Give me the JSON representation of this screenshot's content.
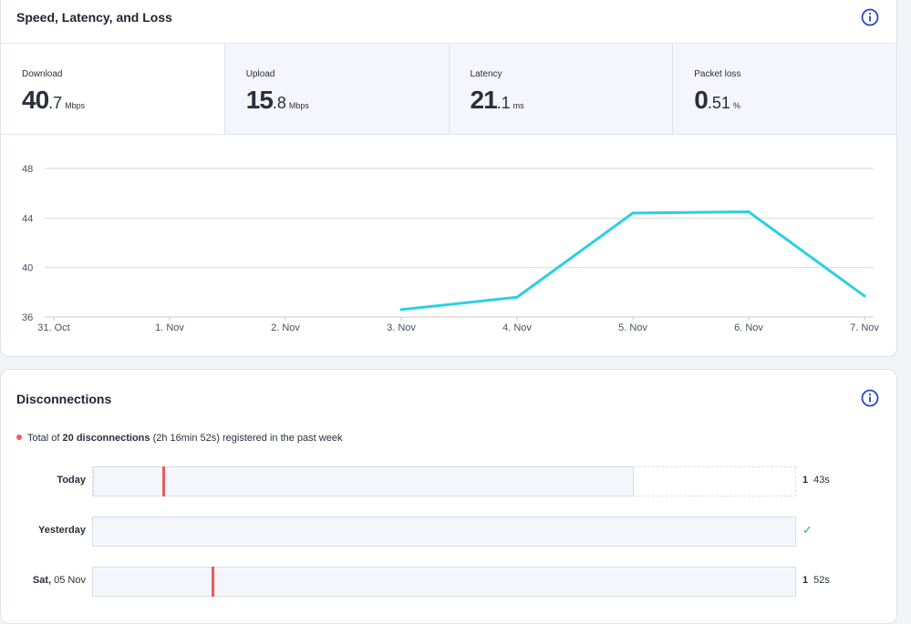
{
  "speed": {
    "title": "Speed, Latency, and Loss",
    "info_icon": "info-circle-icon",
    "metrics": [
      {
        "label": "Download",
        "int": "40",
        "dec": ".7",
        "unit": "Mbps"
      },
      {
        "label": "Upload",
        "int": "15",
        "dec": ".8",
        "unit": "Mbps"
      },
      {
        "label": "Latency",
        "int": "21",
        "dec": ".1",
        "unit": "ms"
      },
      {
        "label": "Packet loss",
        "int": "0",
        "dec": ".51",
        "unit": "%"
      }
    ]
  },
  "chart_data": {
    "type": "line",
    "x": [
      "31. Oct",
      "1. Nov",
      "2. Nov",
      "3. Nov",
      "4. Nov",
      "5. Nov",
      "6. Nov",
      "7. Nov"
    ],
    "series": [
      {
        "values": [
          null,
          null,
          null,
          36.6,
          37.6,
          44.4,
          44.5,
          37.7
        ],
        "color": "#2bcfe6"
      }
    ],
    "yticks": [
      36,
      40,
      44,
      48
    ],
    "ylim": [
      36,
      48
    ],
    "grid": true,
    "title": "",
    "xlabel": "",
    "ylabel": ""
  },
  "disconnections": {
    "title": "Disconnections",
    "info_icon": "info-circle-icon",
    "summary_pre": "Total of ",
    "summary_bold": "20 disconnections",
    "summary_post": " (2h 16min 52s) registered in the past week",
    "rows": [
      {
        "label_bold": "Today",
        "label_rest": "",
        "elapsed_fraction": 0.77,
        "marks": [
          0.099
        ],
        "count": "1",
        "duration": "43s",
        "ok": false
      },
      {
        "label_bold": "Yesterday",
        "label_rest": "",
        "elapsed_fraction": 1,
        "marks": [],
        "count": "",
        "duration": "",
        "ok": true,
        "ok_icon": "check-icon"
      },
      {
        "label_bold": "Sat,",
        "label_rest": " 05 Nov",
        "elapsed_fraction": 1,
        "marks": [
          0.169
        ],
        "count": "1",
        "duration": "52s",
        "ok": false
      }
    ],
    "mark_color": "#ef5b5b"
  }
}
